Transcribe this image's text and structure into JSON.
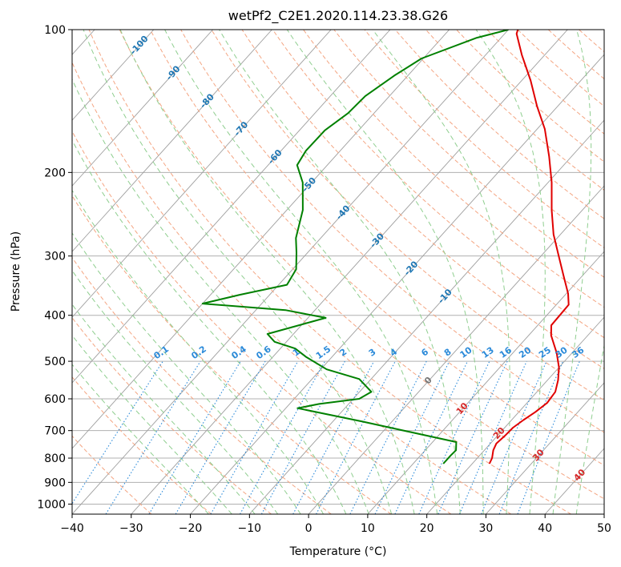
{
  "chart_data": {
    "type": "line",
    "subtype": "skew-T log-P diagram",
    "title": "wetPf2_C2E1.2020.114.23.38.G26",
    "xlabel": "Temperature (°C)",
    "ylabel": "Pressure (hPa)",
    "xlim": [
      -40,
      50
    ],
    "ylim": [
      1050,
      100
    ],
    "y_scale": "log",
    "x_ticks": [
      "−40",
      "−30",
      "−20",
      "−10",
      "0",
      "10",
      "20",
      "30",
      "40",
      "50"
    ],
    "y_ticks": [
      "100",
      "200",
      "300",
      "400",
      "500",
      "600",
      "700",
      "800",
      "900",
      "1000"
    ],
    "grid": true,
    "colors": {
      "temperature": "#e00000",
      "dewpoint": "#008000",
      "isotherm": "#888888",
      "dry_adiabat": "#f4a582",
      "moist_adiabat": "#8fce8f",
      "mixing_ratio": "#2b8ad9",
      "label_blue": "#1f77b4",
      "label_red": "#d62728",
      "label_gray": "#777777"
    },
    "series": [
      {
        "name": "",
        "color_key": "temperature",
        "points": [
          {
            "T": 22.9,
            "p": 822
          },
          {
            "T": 22.5,
            "p": 800
          },
          {
            "T": 21.5,
            "p": 770
          },
          {
            "T": 21.0,
            "p": 745
          },
          {
            "T": 21.3,
            "p": 715
          },
          {
            "T": 21.4,
            "p": 690
          },
          {
            "T": 22.0,
            "p": 665
          },
          {
            "T": 22.8,
            "p": 640
          },
          {
            "T": 23.4,
            "p": 612
          },
          {
            "T": 23.1,
            "p": 580
          },
          {
            "T": 21.8,
            "p": 548
          },
          {
            "T": 20.0,
            "p": 515
          },
          {
            "T": 17.4,
            "p": 480
          },
          {
            "T": 13.8,
            "p": 441
          },
          {
            "T": 12.3,
            "p": 420
          },
          {
            "T": 12.2,
            "p": 400
          },
          {
            "T": 12.1,
            "p": 380
          },
          {
            "T": 10.3,
            "p": 360
          },
          {
            "T": 6.8,
            "p": 330
          },
          {
            "T": 3.0,
            "p": 300
          },
          {
            "T": -1.2,
            "p": 270
          },
          {
            "T": -5.2,
            "p": 240
          },
          {
            "T": -9.4,
            "p": 210
          },
          {
            "T": -13.8,
            "p": 185
          },
          {
            "T": -18.7,
            "p": 162
          },
          {
            "T": -23.5,
            "p": 145
          },
          {
            "T": -28.5,
            "p": 128
          },
          {
            "T": -33.9,
            "p": 113
          },
          {
            "T": -38.0,
            "p": 102
          },
          {
            "T": -38.4,
            "p": 100
          }
        ]
      },
      {
        "name": "",
        "color_key": "dewpoint",
        "points": [
          {
            "T": 15.1,
            "p": 822
          },
          {
            "T": 15.1,
            "p": 790
          },
          {
            "T": 15.2,
            "p": 770
          },
          {
            "T": 14.0,
            "p": 740
          },
          {
            "T": -5.0,
            "p": 670
          },
          {
            "T": -18.0,
            "p": 628
          },
          {
            "T": -15.0,
            "p": 615
          },
          {
            "T": -9.0,
            "p": 600
          },
          {
            "T": -8.0,
            "p": 580
          },
          {
            "T": -12.0,
            "p": 545
          },
          {
            "T": -19.0,
            "p": 520
          },
          {
            "T": -24.3,
            "p": 490
          },
          {
            "T": -27.5,
            "p": 470
          },
          {
            "T": -32.0,
            "p": 455
          },
          {
            "T": -34.4,
            "p": 438
          },
          {
            "T": -27.0,
            "p": 405
          },
          {
            "T": -35.0,
            "p": 390
          },
          {
            "T": -50.0,
            "p": 378
          },
          {
            "T": -45.0,
            "p": 362
          },
          {
            "T": -38.6,
            "p": 345
          },
          {
            "T": -39.4,
            "p": 320
          },
          {
            "T": -41.9,
            "p": 295
          },
          {
            "T": -44.2,
            "p": 275
          },
          {
            "T": -47.3,
            "p": 240
          },
          {
            "T": -51.5,
            "p": 210
          },
          {
            "T": -55.1,
            "p": 193
          },
          {
            "T": -55.8,
            "p": 180
          },
          {
            "T": -55.7,
            "p": 163
          },
          {
            "T": -54.4,
            "p": 150
          },
          {
            "T": -54.1,
            "p": 138
          },
          {
            "T": -52.3,
            "p": 125
          },
          {
            "T": -50.3,
            "p": 115
          },
          {
            "T": -44.1,
            "p": 104
          },
          {
            "T": -40.0,
            "p": 100
          }
        ]
      }
    ],
    "isotherm_labels": [
      "-100",
      "-90",
      "-80",
      "-70",
      "-60",
      "-50",
      "-40",
      "-30",
      "-20",
      "-10",
      "0",
      "10",
      "20",
      "30",
      "40"
    ],
    "mixing_ratio_labels": [
      "0.1",
      "0.2",
      "0.4",
      "0.6",
      "1",
      "1.5",
      "2",
      "3",
      "4",
      "6",
      "8",
      "10",
      "13",
      "16",
      "20",
      "25",
      "30",
      "36"
    ]
  }
}
